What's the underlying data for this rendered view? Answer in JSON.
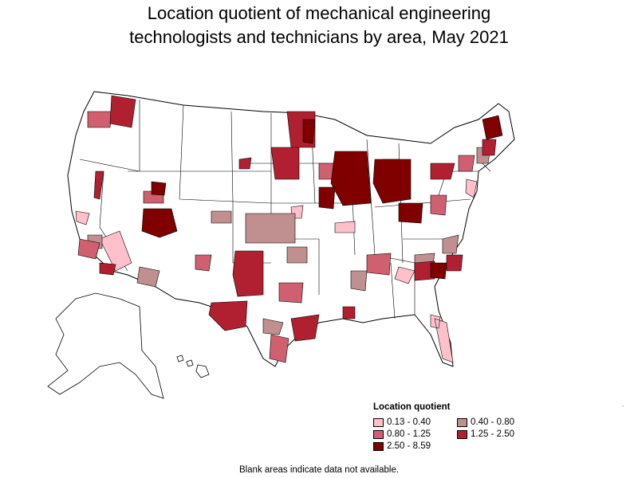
{
  "title_line1": "Location quotient of mechanical engineering",
  "title_line2": "technologists and technicians by area, May 2021",
  "legend": {
    "title": "Location quotient",
    "items": [
      {
        "label": "0.13 - 0.40",
        "color": "#ffc0cb"
      },
      {
        "label": "0.40 - 0.80",
        "color": "#c09090"
      },
      {
        "label": "0.80 - 1.25",
        "color": "#d06070"
      },
      {
        "label": "1.25 - 2.50",
        "color": "#b02030"
      },
      {
        "label": "2.50 - 8.59",
        "color": "#800000"
      }
    ]
  },
  "footnote": "Blank areas indicate data not available.",
  "colors": {
    "class1": "#ffc0cb",
    "class2": "#c09090",
    "class3": "#d06070",
    "class4": "#b02030",
    "class5": "#800000",
    "blank": "#ffffff",
    "outline": "#000000"
  }
}
